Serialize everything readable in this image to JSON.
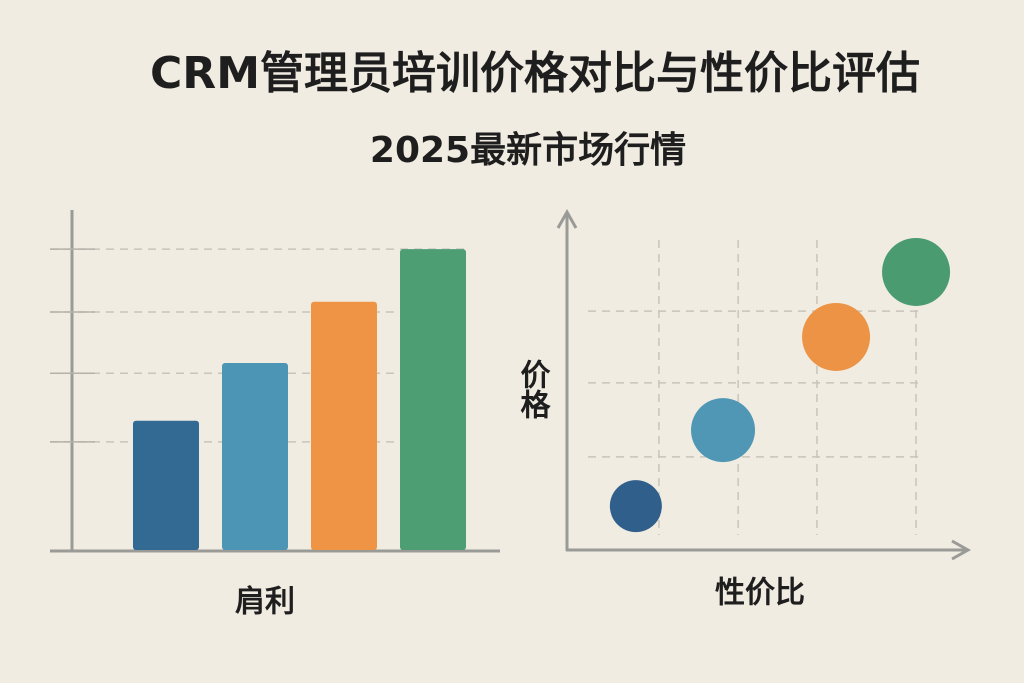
{
  "title": "CRM管理员培训价格对比与性价比评估",
  "subtitle": "2025最新市场行情",
  "chart_data": [
    {
      "type": "bar",
      "x_label": "肩利",
      "categories": [
        null,
        null,
        null,
        null
      ],
      "values": [
        38,
        55,
        73,
        88.5
      ],
      "colors": [
        "#336a93",
        "#4c95b5",
        "#ef9444",
        "#4e9e74"
      ],
      "ylim": [
        0,
        100
      ],
      "yticks": [
        31.8,
        52,
        70,
        88.5
      ],
      "grid": true,
      "show_tick_labels": false
    },
    {
      "type": "scatter",
      "x_label": "性价比",
      "y_label": "价格",
      "x": [
        17.3,
        39.2,
        67.6,
        87.7
      ],
      "values": [
        13.1,
        35.8,
        63.6,
        83
      ],
      "sizes": [
        26,
        32,
        34,
        34
      ],
      "colors": [
        "#2f5f8a",
        "#4f97b5",
        "#ec9345",
        "#4b9b70"
      ],
      "xlim": [
        0,
        100
      ],
      "ylim": [
        0,
        100
      ],
      "xticks": [
        23.1,
        43,
        62.8,
        87.7
      ],
      "yticks": [
        27.8,
        49.9,
        71.3
      ],
      "grid": true,
      "show_tick_labels": false
    }
  ]
}
